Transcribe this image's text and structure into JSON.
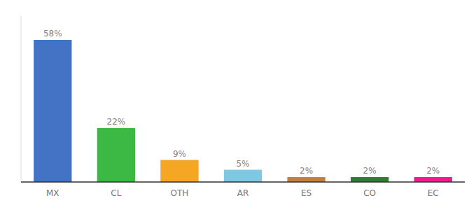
{
  "chart_data": {
    "type": "bar",
    "categories": [
      "MX",
      "CL",
      "OTH",
      "AR",
      "ES",
      "CO",
      "EC"
    ],
    "values": [
      58,
      22,
      9,
      5,
      2,
      2,
      2
    ],
    "value_labels": [
      "58%",
      "22%",
      "9%",
      "5%",
      "2%",
      "2%",
      "2%"
    ],
    "colors": [
      "#4472c4",
      "#3cb844",
      "#f5a623",
      "#7ec8e3",
      "#c47f3c",
      "#2e7d32",
      "#e91e8c"
    ],
    "ylim": [
      0,
      68
    ],
    "data_labels": true,
    "grid": false,
    "tick_labels": "x"
  }
}
